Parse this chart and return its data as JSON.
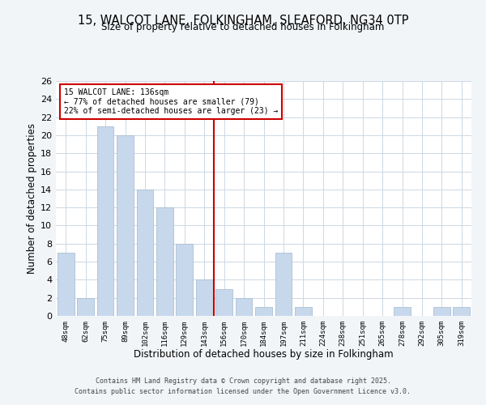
{
  "title": "15, WALCOT LANE, FOLKINGHAM, SLEAFORD, NG34 0TP",
  "subtitle": "Size of property relative to detached houses in Folkingham",
  "xlabel": "Distribution of detached houses by size in Folkingham",
  "ylabel": "Number of detached properties",
  "bar_color": "#c8d8ec",
  "bar_edge_color": "#aabfd4",
  "bins": [
    "48sqm",
    "62sqm",
    "75sqm",
    "89sqm",
    "102sqm",
    "116sqm",
    "129sqm",
    "143sqm",
    "156sqm",
    "170sqm",
    "184sqm",
    "197sqm",
    "211sqm",
    "224sqm",
    "238sqm",
    "251sqm",
    "265sqm",
    "278sqm",
    "292sqm",
    "305sqm",
    "319sqm"
  ],
  "values": [
    7,
    2,
    21,
    20,
    14,
    12,
    8,
    4,
    3,
    2,
    1,
    7,
    1,
    0,
    0,
    0,
    0,
    1,
    0,
    1,
    1
  ],
  "ylim": [
    0,
    26
  ],
  "yticks": [
    0,
    2,
    4,
    6,
    8,
    10,
    12,
    14,
    16,
    18,
    20,
    22,
    24,
    26
  ],
  "vline_color": "#cc0000",
  "annotation_title": "15 WALCOT LANE: 136sqm",
  "annotation_line1": "← 77% of detached houses are smaller (79)",
  "annotation_line2": "22% of semi-detached houses are larger (23) →",
  "footer1": "Contains HM Land Registry data © Crown copyright and database right 2025.",
  "footer2": "Contains public sector information licensed under the Open Government Licence v3.0.",
  "bg_color": "#f2f5f8",
  "plot_bg_color": "#ffffff",
  "grid_color": "#cdd8e3"
}
